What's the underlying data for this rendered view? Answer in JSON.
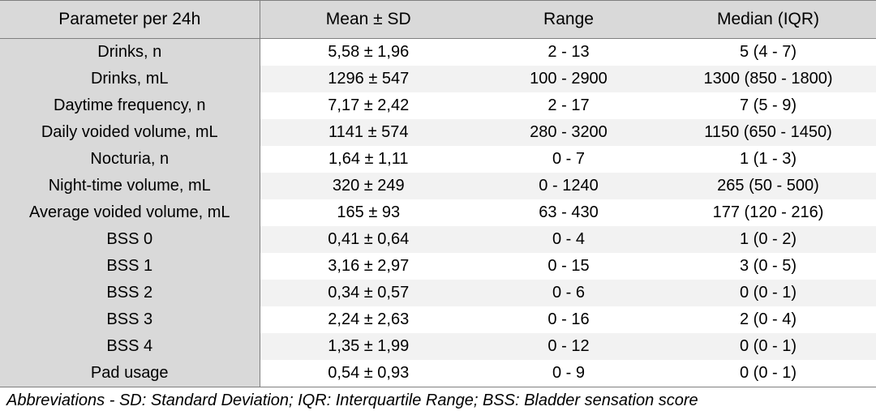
{
  "table": {
    "headers": [
      "Parameter per 24h",
      "Mean ± SD",
      "Range",
      "Median (IQR)"
    ],
    "rows": [
      {
        "parameter": "Drinks, n",
        "mean_sd": "5,58 ± 1,96",
        "range": "2 - 13",
        "median_iqr": "5 (4 - 7)"
      },
      {
        "parameter": "Drinks, mL",
        "mean_sd": "1296 ± 547",
        "range": "100 - 2900",
        "median_iqr": "1300 (850 - 1800)"
      },
      {
        "parameter": "Daytime frequency, n",
        "mean_sd": "7,17 ± 2,42",
        "range": "2 - 17",
        "median_iqr": "7 (5 - 9)"
      },
      {
        "parameter": "Daily voided volume, mL",
        "mean_sd": "1141 ± 574",
        "range": "280 - 3200",
        "median_iqr": "1150 (650 - 1450)"
      },
      {
        "parameter": "Nocturia, n",
        "mean_sd": "1,64 ± 1,11",
        "range": "0 - 7",
        "median_iqr": "1 (1 - 3)"
      },
      {
        "parameter": "Night-time volume, mL",
        "mean_sd": "320 ± 249",
        "range": "0 - 1240",
        "median_iqr": "265 (50 - 500)"
      },
      {
        "parameter": "Average voided volume, mL",
        "mean_sd": "165 ± 93",
        "range": "63 - 430",
        "median_iqr": "177 (120 - 216)"
      },
      {
        "parameter": "BSS 0",
        "mean_sd": "0,41 ± 0,64",
        "range": "0 - 4",
        "median_iqr": "1 (0 - 2)"
      },
      {
        "parameter": "BSS 1",
        "mean_sd": "3,16 ± 2,97",
        "range": "0 - 15",
        "median_iqr": "3 (0 - 5)"
      },
      {
        "parameter": "BSS 2",
        "mean_sd": "0,34 ± 0,57",
        "range": "0 - 6",
        "median_iqr": "0 (0 - 1)"
      },
      {
        "parameter": "BSS 3",
        "mean_sd": "2,24 ± 2,63",
        "range": "0 - 16",
        "median_iqr": "2 (0 - 4)"
      },
      {
        "parameter": "BSS 4",
        "mean_sd": "1,35 ± 1,99",
        "range": "0 - 12",
        "median_iqr": "0 (0 - 1)"
      },
      {
        "parameter": "Pad usage",
        "mean_sd": "0,54 ± 0,93",
        "range": "0 - 9",
        "median_iqr": "0 (0 - 1)"
      }
    ]
  },
  "footnote": "Abbreviations - SD: Standard Deviation; IQR: Interquartile Range; BSS: Bladder sensation score",
  "colors": {
    "header_bg": "#d9d9d9",
    "param_col_bg": "#d9d9d9",
    "stripe_bg": "#f2f2f2",
    "rule": "#7f7f7f"
  }
}
